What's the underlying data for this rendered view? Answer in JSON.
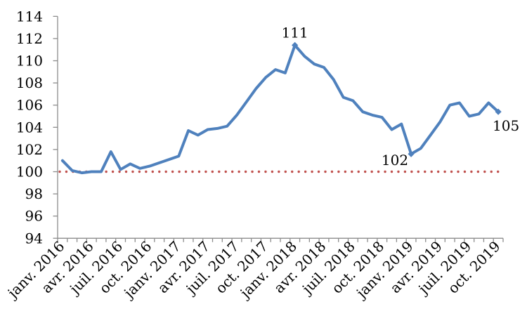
{
  "chart_data": {
    "type": "line",
    "title": "",
    "xlabel": "",
    "ylabel": "",
    "ylim": [
      94,
      114
    ],
    "y_ticks": [
      94,
      96,
      98,
      100,
      102,
      104,
      106,
      108,
      110,
      112,
      114
    ],
    "grid": false,
    "legend": "none",
    "categories": [
      "janv. 2016",
      "févr. 2016",
      "mars 2016",
      "avr. 2016",
      "mai 2016",
      "juin 2016",
      "juil. 2016",
      "août 2016",
      "sept. 2016",
      "oct. 2016",
      "nov. 2016",
      "déc. 2016",
      "janv. 2017",
      "févr. 2017",
      "mars 2017",
      "avr. 2017",
      "mai 2017",
      "juin 2017",
      "juil. 2017",
      "août 2017",
      "sept. 2017",
      "oct. 2017",
      "nov. 2017",
      "déc. 2017",
      "janv. 2018",
      "févr. 2018",
      "mars 2018",
      "avr. 2018",
      "mai 2018",
      "juin 2018",
      "juil. 2018",
      "août 2018",
      "sept. 2018",
      "oct. 2018",
      "nov. 2018",
      "déc. 2018",
      "janv. 2019",
      "févr. 2019",
      "mars 2019",
      "avr. 2019",
      "mai 2019",
      "juin 2019",
      "juil. 2019",
      "août 2019",
      "sept. 2019",
      "oct. 2019"
    ],
    "visible_x_tick_labels": [
      "janv. 2016",
      "avr. 2016",
      "juil. 2016",
      "oct. 2016",
      "janv. 2017",
      "avr. 2017",
      "juil. 2017",
      "oct. 2017",
      "janv. 2018",
      "avr. 2018",
      "juil. 2018",
      "oct. 2018",
      "janv. 2019",
      "avr. 2019",
      "juil. 2019",
      "oct. 2019"
    ],
    "series": [
      {
        "name": "index-series",
        "color": "#4F81BD",
        "values": [
          101.0,
          100.1,
          99.9,
          100.0,
          100.0,
          101.8,
          100.2,
          100.7,
          100.3,
          100.5,
          100.8,
          101.1,
          101.4,
          103.7,
          103.3,
          103.8,
          103.9,
          104.1,
          105.1,
          106.3,
          107.5,
          108.5,
          109.2,
          108.9,
          111.4,
          110.4,
          109.7,
          109.4,
          108.3,
          106.7,
          106.4,
          105.4,
          105.1,
          104.9,
          103.8,
          104.3,
          101.6,
          102.1,
          103.3,
          104.5,
          106.0,
          106.2,
          105.0,
          105.2,
          106.2,
          105.4
        ]
      },
      {
        "name": "reference-line-100",
        "color": "#C0504D",
        "style": "dotted",
        "constant_value": 100
      }
    ],
    "annotations": [
      {
        "label": "111",
        "category": "janv. 2018",
        "index": 24,
        "value": 111.4,
        "marker": "diamond",
        "placement": "above"
      },
      {
        "label": "102",
        "category": "janv. 2019",
        "index": 36,
        "value": 101.6,
        "marker": "diamond",
        "placement": "below-left"
      },
      {
        "label": "105",
        "category": "oct. 2019",
        "index": 45,
        "value": 105.4,
        "marker": "diamond",
        "placement": "below-right"
      }
    ]
  },
  "colors": {
    "line": "#4F81BD",
    "dotted_reference": "#C0504D",
    "axis": "#8C8C8C",
    "text": "#000000",
    "background": "#FFFFFF"
  }
}
